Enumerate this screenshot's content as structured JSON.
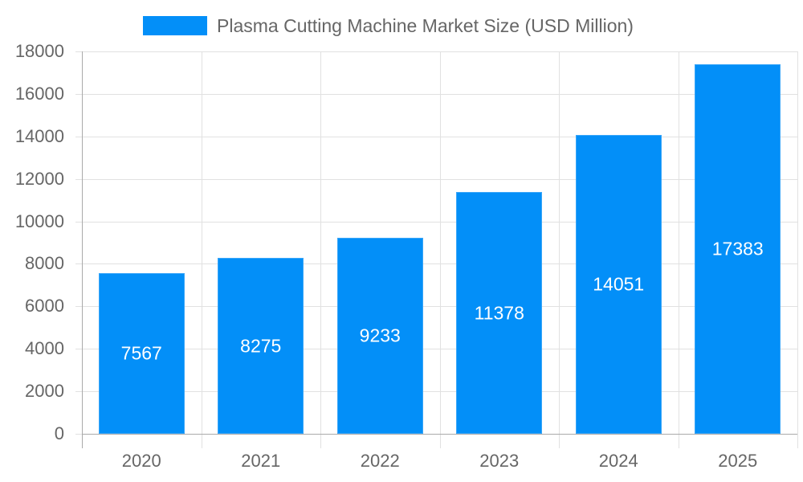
{
  "chart_data": {
    "type": "bar",
    "title": "",
    "legend": [
      "Plasma Cutting Machine Market Size (USD Million)"
    ],
    "legend_position": "top",
    "categories": [
      "2020",
      "2021",
      "2022",
      "2023",
      "2024",
      "2025"
    ],
    "series": [
      {
        "name": "Plasma Cutting Machine Market Size (USD Million)",
        "values": [
          7567,
          8275,
          9233,
          11378,
          14051,
          17383
        ],
        "color": "#038ff8"
      }
    ],
    "xlabel": "",
    "ylabel": "",
    "ylim": [
      0,
      18000
    ],
    "yticks": [
      "0",
      "2000",
      "4000",
      "6000",
      "8000",
      "10000",
      "12000",
      "14000",
      "16000",
      "18000"
    ],
    "grid": true,
    "data_labels": [
      "7567",
      "8275",
      "9233",
      "11378",
      "14051",
      "17383"
    ]
  }
}
